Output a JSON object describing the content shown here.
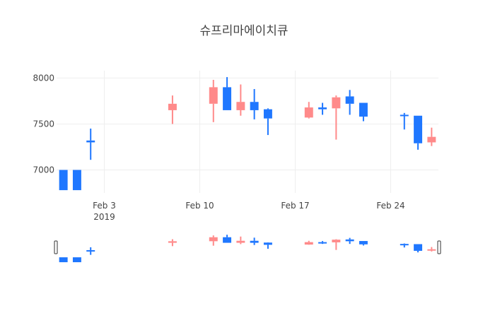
{
  "chart_data": {
    "type": "candlestick",
    "title": "슈프리마에이치큐",
    "xlabel": "",
    "ylabel": "",
    "ylim": [
      6750,
      8080
    ],
    "grid": true,
    "legend": "none",
    "increasing_color": "#ff8a8a",
    "decreasing_color": "#1f77ff",
    "x_ticks": [
      {
        "date": "2019-02-03",
        "label": "Feb 3",
        "sublabel": "2019"
      },
      {
        "date": "2019-02-10",
        "label": "Feb 10",
        "sublabel": ""
      },
      {
        "date": "2019-02-17",
        "label": "Feb 17",
        "sublabel": ""
      },
      {
        "date": "2019-02-24",
        "label": "Feb 24",
        "sublabel": ""
      }
    ],
    "y_ticks": [
      {
        "value": 7000,
        "label": "7000"
      },
      {
        "value": 7500,
        "label": "7500"
      },
      {
        "value": 8000,
        "label": "8000"
      }
    ],
    "candles": [
      {
        "date": "2019-01-31",
        "open": 7000,
        "high": 7000,
        "low": 6780,
        "close": 6780
      },
      {
        "date": "2019-02-01",
        "open": 7000,
        "high": 7000,
        "low": 6780,
        "close": 6780
      },
      {
        "date": "2019-02-02",
        "open": 7320,
        "high": 7450,
        "low": 7110,
        "close": 7300
      },
      {
        "date": "2019-02-08",
        "open": 7650,
        "high": 7810,
        "low": 7500,
        "close": 7720
      },
      {
        "date": "2019-02-11",
        "open": 7720,
        "high": 7980,
        "low": 7520,
        "close": 7900
      },
      {
        "date": "2019-02-12",
        "open": 7900,
        "high": 8010,
        "low": 7650,
        "close": 7650
      },
      {
        "date": "2019-02-13",
        "open": 7650,
        "high": 7930,
        "low": 7590,
        "close": 7740
      },
      {
        "date": "2019-02-14",
        "open": 7740,
        "high": 7880,
        "low": 7550,
        "close": 7650
      },
      {
        "date": "2019-02-15",
        "open": 7660,
        "high": 7670,
        "low": 7380,
        "close": 7560
      },
      {
        "date": "2019-02-18",
        "open": 7570,
        "high": 7740,
        "low": 7560,
        "close": 7680
      },
      {
        "date": "2019-02-19",
        "open": 7680,
        "high": 7730,
        "low": 7600,
        "close": 7660
      },
      {
        "date": "2019-02-20",
        "open": 7670,
        "high": 7810,
        "low": 7330,
        "close": 7790
      },
      {
        "date": "2019-02-21",
        "open": 7800,
        "high": 7870,
        "low": 7600,
        "close": 7720
      },
      {
        "date": "2019-02-22",
        "open": 7730,
        "high": 7730,
        "low": 7530,
        "close": 7580
      },
      {
        "date": "2019-02-25",
        "open": 7600,
        "high": 7620,
        "low": 7440,
        "close": 7590
      },
      {
        "date": "2019-02-26",
        "open": 7590,
        "high": 7590,
        "low": 7220,
        "close": 7290
      },
      {
        "date": "2019-02-27",
        "open": 7300,
        "high": 7460,
        "low": 7260,
        "close": 7360
      }
    ]
  }
}
